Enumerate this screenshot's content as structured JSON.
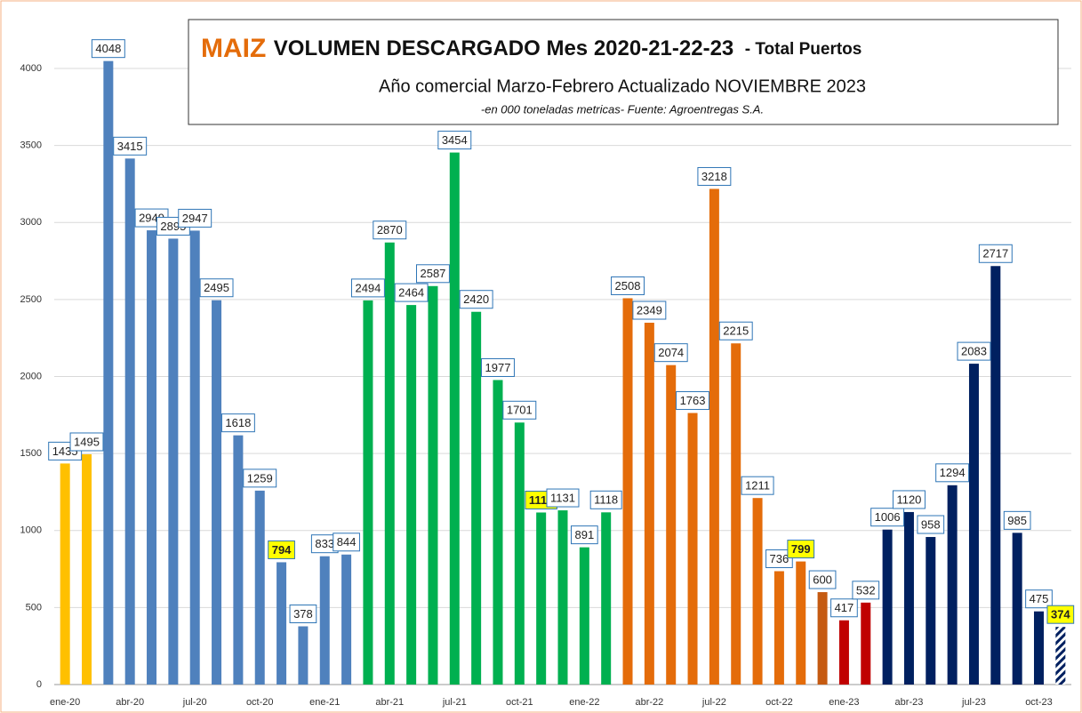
{
  "chart_data": {
    "type": "bar",
    "title_prefix": "MAIZ",
    "title": "VOLUMEN DESCARGADO  Mes  2020-21-22-23",
    "title_suffix": "- Total Puertos",
    "subtitle": "Año comercial Marzo-Febrero Actualizado NOVIEMBRE   2023",
    "note": "-en 000 toneladas metricas- Fuente: Agroentregas S.A.",
    "categories": [
      "ene-20",
      null,
      null,
      "abr-20",
      null,
      null,
      "jul-20",
      null,
      null,
      "oct-20",
      null,
      null,
      "ene-21",
      null,
      null,
      "abr-21",
      null,
      null,
      "jul-21",
      null,
      null,
      "oct-21",
      null,
      null,
      "ene-22",
      null,
      null,
      "abr-22",
      null,
      null,
      "jul-22",
      null,
      null,
      "oct-22",
      null,
      null,
      "ene-23",
      null,
      null,
      "abr-23",
      null,
      null,
      "jul-23",
      null,
      null,
      "oct-23",
      null
    ],
    "values": [
      1435,
      1495,
      4048,
      3415,
      2949,
      2895,
      2947,
      2495,
      1618,
      1259,
      794,
      378,
      833,
      844,
      2494,
      2870,
      2464,
      2587,
      3454,
      2420,
      1977,
      1701,
      1117,
      1131,
      891,
      1118,
      2508,
      2349,
      2074,
      1763,
      3218,
      2215,
      1211,
      736,
      799,
      600,
      417,
      532,
      1006,
      1120,
      958,
      1294,
      2083,
      2717,
      985,
      475,
      374
    ],
    "colors": [
      "#ffc000",
      "#ffc000",
      "#4f81bd",
      "#4f81bd",
      "#4f81bd",
      "#4f81bd",
      "#4f81bd",
      "#4f81bd",
      "#4f81bd",
      "#4f81bd",
      "#4f81bd",
      "#4f81bd",
      "#4f81bd",
      "#4f81bd",
      "#00b050",
      "#00b050",
      "#00b050",
      "#00b050",
      "#00b050",
      "#00b050",
      "#00b050",
      "#00b050",
      "#00b050",
      "#00b050",
      "#00b050",
      "#00b050",
      "#e46c0a",
      "#e46c0a",
      "#e46c0a",
      "#e46c0a",
      "#e46c0a",
      "#e46c0a",
      "#e46c0a",
      "#e46c0a",
      "#e46c0a",
      "#c55a11",
      "#c00000",
      "#c00000",
      "#002060",
      "#002060",
      "#002060",
      "#002060",
      "#002060",
      "#002060",
      "#002060",
      "#002060",
      "#002060"
    ],
    "highlight": [
      10,
      22,
      34,
      46
    ],
    "hatched": [
      46
    ],
    "ylim": [
      0,
      4300
    ],
    "yticks": [
      0,
      500,
      1000,
      1500,
      2000,
      2500,
      3000,
      3500,
      4000
    ],
    "grid": true
  }
}
